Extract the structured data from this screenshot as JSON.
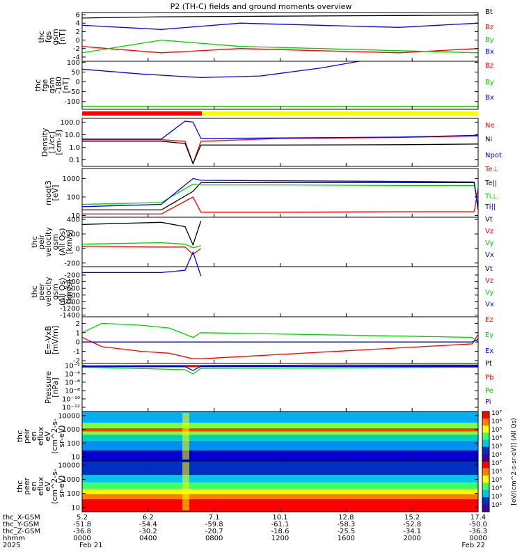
{
  "title": "P2 (TH-C) fields and ground moments overview",
  "colors": {
    "black": "#000000",
    "red": "#ff0000",
    "green": "#00d000",
    "blue": "#0000ff",
    "yellow": "#ffff00"
  },
  "chart_data": [
    {
      "type": "line",
      "ylabel_lines": [
        "thc",
        "fgs",
        "gsm",
        "[nT]"
      ],
      "ylim": [
        -5,
        6.5
      ],
      "yticks": [
        "6",
        "4",
        "2",
        "0",
        "-2",
        "-4"
      ],
      "yvals": [
        6,
        4,
        2,
        0,
        -2,
        -4
      ],
      "series": [
        {
          "name": "Bt",
          "color": "black",
          "x": [
            0,
            0.2,
            0.4,
            0.6,
            0.8,
            1
          ],
          "values": [
            5.2,
            5.5,
            5.6,
            5.7,
            5.8,
            5.9
          ]
        },
        {
          "name": "Bz",
          "color": "red",
          "x": [
            0,
            0.2,
            0.4,
            0.6,
            0.8,
            1
          ],
          "values": [
            -1.5,
            -3.0,
            -2.0,
            -2.5,
            -3.0,
            -2.0
          ]
        },
        {
          "name": "By",
          "color": "green",
          "x": [
            0,
            0.2,
            0.4,
            0.6,
            0.8,
            1
          ],
          "values": [
            -3.0,
            0.0,
            -1.5,
            -2.0,
            -2.5,
            -3.0
          ]
        },
        {
          "name": "Bx",
          "color": "blue",
          "x": [
            0,
            0.2,
            0.4,
            0.6,
            0.8,
            1
          ],
          "values": [
            3.5,
            2.5,
            4.0,
            3.5,
            3.0,
            4.0
          ]
        }
      ]
    },
    {
      "type": "line",
      "ylabel_lines": [
        "thc",
        "fge",
        "gsm",
        "-180",
        "[nT]"
      ],
      "ylim": [
        -140,
        105
      ],
      "yticks": [
        "100",
        "50",
        "0",
        "-50",
        "-100"
      ],
      "yvals": [
        100,
        50,
        0,
        -50,
        -100
      ],
      "series": [
        {
          "name": "Bz",
          "color": "red",
          "x": [
            0,
            1
          ],
          "values": [
            -125,
            -125
          ]
        },
        {
          "name": "By",
          "color": "green",
          "x": [
            0,
            1
          ],
          "values": [
            -125,
            -125
          ]
        },
        {
          "name": "Bx",
          "color": "blue",
          "x": [
            0,
            0.15,
            0.3,
            0.45,
            0.6,
            0.7
          ],
          "values": [
            65,
            40,
            22,
            30,
            70,
            105
          ]
        }
      ]
    },
    {
      "type": "line",
      "ylabel_lines": [
        "Density",
        "[1/cc]",
        "[cm-3]"
      ],
      "log": true,
      "ylim": [
        0.03,
        200
      ],
      "yticks": [
        "100.0",
        "10.0",
        "1.0",
        "0.1"
      ],
      "yvals": [
        100,
        10,
        1,
        0.1
      ],
      "series": [
        {
          "name": "Ne",
          "color": "red",
          "x": [
            0,
            0.2,
            0.26,
            0.28,
            0.3,
            0.5,
            0.8,
            1
          ],
          "values": [
            4,
            4,
            3,
            0.05,
            3,
            5,
            6,
            8
          ]
        },
        {
          "name": "Ni",
          "color": "black",
          "x": [
            0,
            0.2,
            0.26,
            0.28,
            0.3,
            0.5,
            0.8,
            1
          ],
          "values": [
            3,
            3,
            2,
            0.05,
            1.5,
            1.5,
            1.6,
            1.8
          ]
        },
        {
          "name": "Npot",
          "color": "blue",
          "x": [
            0,
            0.2,
            0.26,
            0.28,
            0.3,
            0.5,
            0.8,
            1
          ],
          "values": [
            4.5,
            4.5,
            120,
            100,
            5,
            5.5,
            6.5,
            9
          ]
        }
      ]
    },
    {
      "type": "line",
      "ylabel_lines": [
        "moqt3",
        "[eV]"
      ],
      "log": true,
      "ylim": [
        8,
        3500
      ],
      "yticks": [
        "1000",
        "100",
        "10"
      ],
      "yvals": [
        1000,
        100,
        10
      ],
      "series": [
        {
          "name": "Te⊥",
          "color": "red",
          "x": [
            0,
            0.2,
            0.28,
            0.3,
            0.5,
            0.8,
            0.99,
            1
          ],
          "values": [
            12,
            12,
            100,
            15,
            15,
            16,
            16,
            300
          ]
        },
        {
          "name": "Te||",
          "color": "black",
          "x": [
            0,
            0.2,
            0.28,
            0.3,
            0.5,
            0.8,
            0.99,
            1
          ],
          "values": [
            20,
            20,
            200,
            600,
            600,
            600,
            600,
            20
          ]
        },
        {
          "name": "Ti⊥",
          "color": "green",
          "x": [
            0,
            0.2,
            0.28,
            0.3,
            0.5,
            0.8,
            0.99,
            1
          ],
          "values": [
            40,
            50,
            500,
            450,
            450,
            420,
            420,
            30
          ]
        },
        {
          "name": "Ti||",
          "color": "blue",
          "x": [
            0,
            0.2,
            0.28,
            0.3,
            0.5,
            0.8,
            0.99,
            1
          ],
          "values": [
            30,
            40,
            1000,
            800,
            750,
            700,
            650,
            30
          ]
        }
      ]
    },
    {
      "type": "line",
      "ylabel_lines": [
        "thc",
        "peir",
        "velocity",
        "gsm",
        "(All Qs)",
        "[km/s]"
      ],
      "ylim": [
        -250,
        430
      ],
      "yticks": [
        "400",
        "200",
        "0",
        "-200"
      ],
      "yvals": [
        400,
        200,
        0,
        -200
      ],
      "series": [
        {
          "name": "Vt",
          "color": "black",
          "x": [
            0,
            0.2,
            0.26,
            0.28,
            0.3
          ],
          "values": [
            330,
            360,
            300,
            50,
            380
          ]
        },
        {
          "name": "Vz",
          "color": "red",
          "x": [
            0,
            0.2,
            0.26,
            0.28,
            0.3
          ],
          "values": [
            30,
            20,
            20,
            -80,
            0
          ]
        },
        {
          "name": "Vy",
          "color": "green",
          "x": [
            0,
            0.2,
            0.26,
            0.28,
            0.3
          ],
          "values": [
            60,
            80,
            60,
            10,
            40
          ]
        },
        {
          "name": "Vx",
          "color": "blue",
          "x": [
            0,
            0.2,
            0.26,
            0.28,
            0.3
          ],
          "values": [
            -330,
            -330,
            -300,
            -50,
            -380
          ]
        }
      ]
    },
    {
      "type": "line",
      "ylabel_lines": [
        "thc",
        "peer",
        "velocity",
        "gsm",
        "(All Qs)",
        "[km/s]"
      ],
      "ylim": [
        -1450,
        50
      ],
      "yticks": [
        "-200",
        "-400",
        "-600",
        "-800",
        "-1000",
        "-1200",
        "-1400"
      ],
      "yvals": [
        -200,
        -400,
        -600,
        -800,
        -1000,
        -1200,
        -1400
      ],
      "series": [
        {
          "name": "Vt",
          "color": "black",
          "x": [],
          "values": []
        },
        {
          "name": "Vz",
          "color": "red",
          "x": [],
          "values": []
        },
        {
          "name": "Vy",
          "color": "green",
          "x": [],
          "values": []
        },
        {
          "name": "Vx",
          "color": "blue",
          "x": [],
          "values": []
        }
      ]
    },
    {
      "type": "line",
      "ylabel_lines": [
        "E=-VxB",
        "[mV/m]"
      ],
      "ylim": [
        -2.3,
        2.7
      ],
      "yticks": [
        "2",
        "1",
        "0",
        "-1",
        "-2"
      ],
      "yvals": [
        2,
        1,
        0,
        -1,
        -2
      ],
      "series": [
        {
          "name": "Ez",
          "color": "red",
          "x": [
            0,
            0.05,
            0.15,
            0.22,
            0.28,
            0.3,
            0.985,
            1
          ],
          "values": [
            0.5,
            -0.5,
            -1.0,
            -1.2,
            -1.8,
            -1.8,
            -0.2,
            0.8
          ]
        },
        {
          "name": "Ey",
          "color": "green",
          "x": [
            0,
            0.05,
            0.15,
            0.22,
            0.28,
            0.3,
            0.985,
            1
          ],
          "values": [
            1.0,
            2.0,
            1.8,
            1.5,
            0.5,
            1.0,
            0.5,
            0.0
          ]
        },
        {
          "name": "Ex",
          "color": "blue",
          "x": [
            0,
            0.1,
            0.2,
            0.28,
            0.3,
            0.985,
            1
          ],
          "values": [
            0.0,
            0.0,
            0.0,
            0.0,
            0.0,
            0.0,
            0.3
          ]
        }
      ]
    },
    {
      "type": "line",
      "ylabel_lines": [
        "Pressure",
        "[nPa]"
      ],
      "log": true,
      "ylim": [
        1e-13,
        0.03
      ],
      "yticks": [
        "10⁻²",
        "10⁻⁴",
        "10⁻⁶",
        "10⁻⁸",
        "10⁻¹⁰",
        "10⁻¹²"
      ],
      "yvals": [
        0.01,
        0.0001,
        1e-06,
        1e-08,
        1e-10,
        1e-12
      ],
      "series": [
        {
          "name": "Pt",
          "color": "black",
          "x": [
            0,
            0.3,
            0.6,
            1
          ],
          "values": [
            0.008,
            0.009,
            0.012,
            0.012
          ]
        },
        {
          "name": "Pb",
          "color": "red",
          "x": [
            0,
            0.3,
            0.6,
            1
          ],
          "values": [
            0.006,
            0.005,
            0.006,
            0.008
          ]
        },
        {
          "name": "Pe",
          "color": "green",
          "x": [
            0,
            0.26,
            0.28,
            0.3,
            1
          ],
          "values": [
            0.004,
            0.001,
            0.0001,
            0.002,
            0.004
          ]
        },
        {
          "name": "Pi",
          "color": "blue",
          "x": [
            0,
            0.26,
            0.28,
            0.3,
            1
          ],
          "values": [
            0.005,
            0.005,
            0.0006,
            0.006,
            0.005
          ]
        }
      ]
    },
    {
      "type": "heatmap",
      "ylabel_lines": [
        "thc",
        "peir",
        "en",
        "eflux",
        "eV",
        "(cm^2-s-",
        "sr-eV)"
      ],
      "log": true,
      "ylim": [
        5,
        20000
      ],
      "yticks": [
        "10000",
        "1000",
        "100",
        "10"
      ],
      "yvals": [
        10000,
        1000,
        100,
        10
      ],
      "bands": [
        {
          "lo": 5,
          "hi": 30,
          "color": "#0000cc"
        },
        {
          "lo": 30,
          "hi": 150,
          "color": "#0090ee"
        },
        {
          "lo": 150,
          "hi": 400,
          "color": "#00d0c0"
        },
        {
          "lo": 400,
          "hi": 700,
          "color": "#80ff40"
        },
        {
          "lo": 700,
          "hi": 1200,
          "color": "#ff4000"
        },
        {
          "lo": 1200,
          "hi": 3000,
          "color": "#80ff40"
        },
        {
          "lo": 3000,
          "hi": 20000,
          "color": "#00b0f0"
        }
      ]
    },
    {
      "type": "heatmap",
      "ylabel_lines": [
        "thc",
        "peer",
        "en",
        "eflux",
        "eV",
        "(cm^2-s-",
        "sr-eV)"
      ],
      "log": true,
      "ylim": [
        5,
        20000
      ],
      "yticks": [
        "10000",
        "1000",
        "100",
        "10"
      ],
      "yvals": [
        10000,
        1000,
        100,
        10
      ],
      "bands": [
        {
          "lo": 5,
          "hi": 40,
          "color": "#ff0000"
        },
        {
          "lo": 40,
          "hi": 90,
          "color": "#ff8000"
        },
        {
          "lo": 90,
          "hi": 200,
          "color": "#ffff00"
        },
        {
          "lo": 200,
          "hi": 600,
          "color": "#40ff60"
        },
        {
          "lo": 600,
          "hi": 2000,
          "color": "#00c8e0"
        },
        {
          "lo": 2000,
          "hi": 20000,
          "color": "#0030c0"
        }
      ]
    }
  ],
  "colorbar": {
    "labels": [
      "10⁷",
      "10⁶",
      "10⁵",
      "10⁴",
      "10³",
      "10²",
      "10⁷",
      "10⁶",
      "10⁵",
      "10⁴",
      "10³",
      "10²"
    ],
    "title": "[eV/(cm^2-s-sr-eV)] (All Qs)"
  },
  "footer": {
    "row_labels": [
      "thc_X-GSM",
      "thc_Y-GSM",
      "thc_Z-GSM",
      "hhmm",
      "2025"
    ],
    "columns": [
      {
        "lines": [
          "5.2",
          "-51.8",
          "-36.8",
          "0000",
          "Feb 21"
        ]
      },
      {
        "lines": [
          "6.2",
          "-54.4",
          "-30.2",
          "0400",
          ""
        ]
      },
      {
        "lines": [
          "7.1",
          "-59.8",
          "-20.7",
          "0800",
          ""
        ]
      },
      {
        "lines": [
          "10.1",
          "-61.1",
          "-18.6",
          "1200",
          ""
        ]
      },
      {
        "lines": [
          "12.8",
          "-58.3",
          "-25.5",
          "1600",
          ""
        ]
      },
      {
        "lines": [
          "15.2",
          "-52.8",
          "-34.1",
          "2000",
          ""
        ]
      },
      {
        "lines": [
          "17.4",
          "-50.0",
          "-36.3",
          "0000",
          "Feb 22"
        ]
      }
    ]
  }
}
